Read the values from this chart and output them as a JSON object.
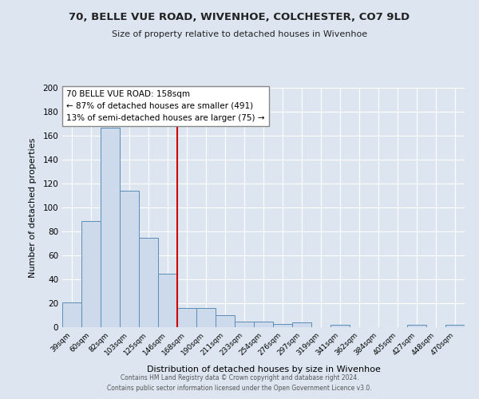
{
  "title": "70, BELLE VUE ROAD, WIVENHOE, COLCHESTER, CO7 9LD",
  "subtitle": "Size of property relative to detached houses in Wivenhoe",
  "xlabel": "Distribution of detached houses by size in Wivenhoe",
  "ylabel": "Number of detached properties",
  "bar_labels": [
    "39sqm",
    "60sqm",
    "82sqm",
    "103sqm",
    "125sqm",
    "146sqm",
    "168sqm",
    "190sqm",
    "211sqm",
    "233sqm",
    "254sqm",
    "276sqm",
    "297sqm",
    "319sqm",
    "341sqm",
    "362sqm",
    "384sqm",
    "405sqm",
    "427sqm",
    "448sqm",
    "470sqm"
  ],
  "bar_values": [
    21,
    89,
    167,
    114,
    75,
    45,
    16,
    16,
    10,
    5,
    5,
    3,
    4,
    0,
    2,
    0,
    0,
    0,
    2,
    0,
    2
  ],
  "bar_color": "#ccdaeb",
  "bar_edge_color": "#5b8db8",
  "reference_line_x": 6.0,
  "reference_line_color": "#cc0000",
  "annotation_title": "70 BELLE VUE ROAD: 158sqm",
  "annotation_line1": "← 87% of detached houses are smaller (491)",
  "annotation_line2": "13% of semi-detached houses are larger (75) →",
  "annotation_box_color": "white",
  "annotation_box_edge": "#888888",
  "ylim": [
    0,
    200
  ],
  "yticks": [
    0,
    20,
    40,
    60,
    80,
    100,
    120,
    140,
    160,
    180,
    200
  ],
  "background_color": "#dde6f0",
  "grid_color": "#ffffff",
  "footer1": "Contains HM Land Registry data © Crown copyright and database right 2024.",
  "footer2": "Contains public sector information licensed under the Open Government Licence v3.0."
}
